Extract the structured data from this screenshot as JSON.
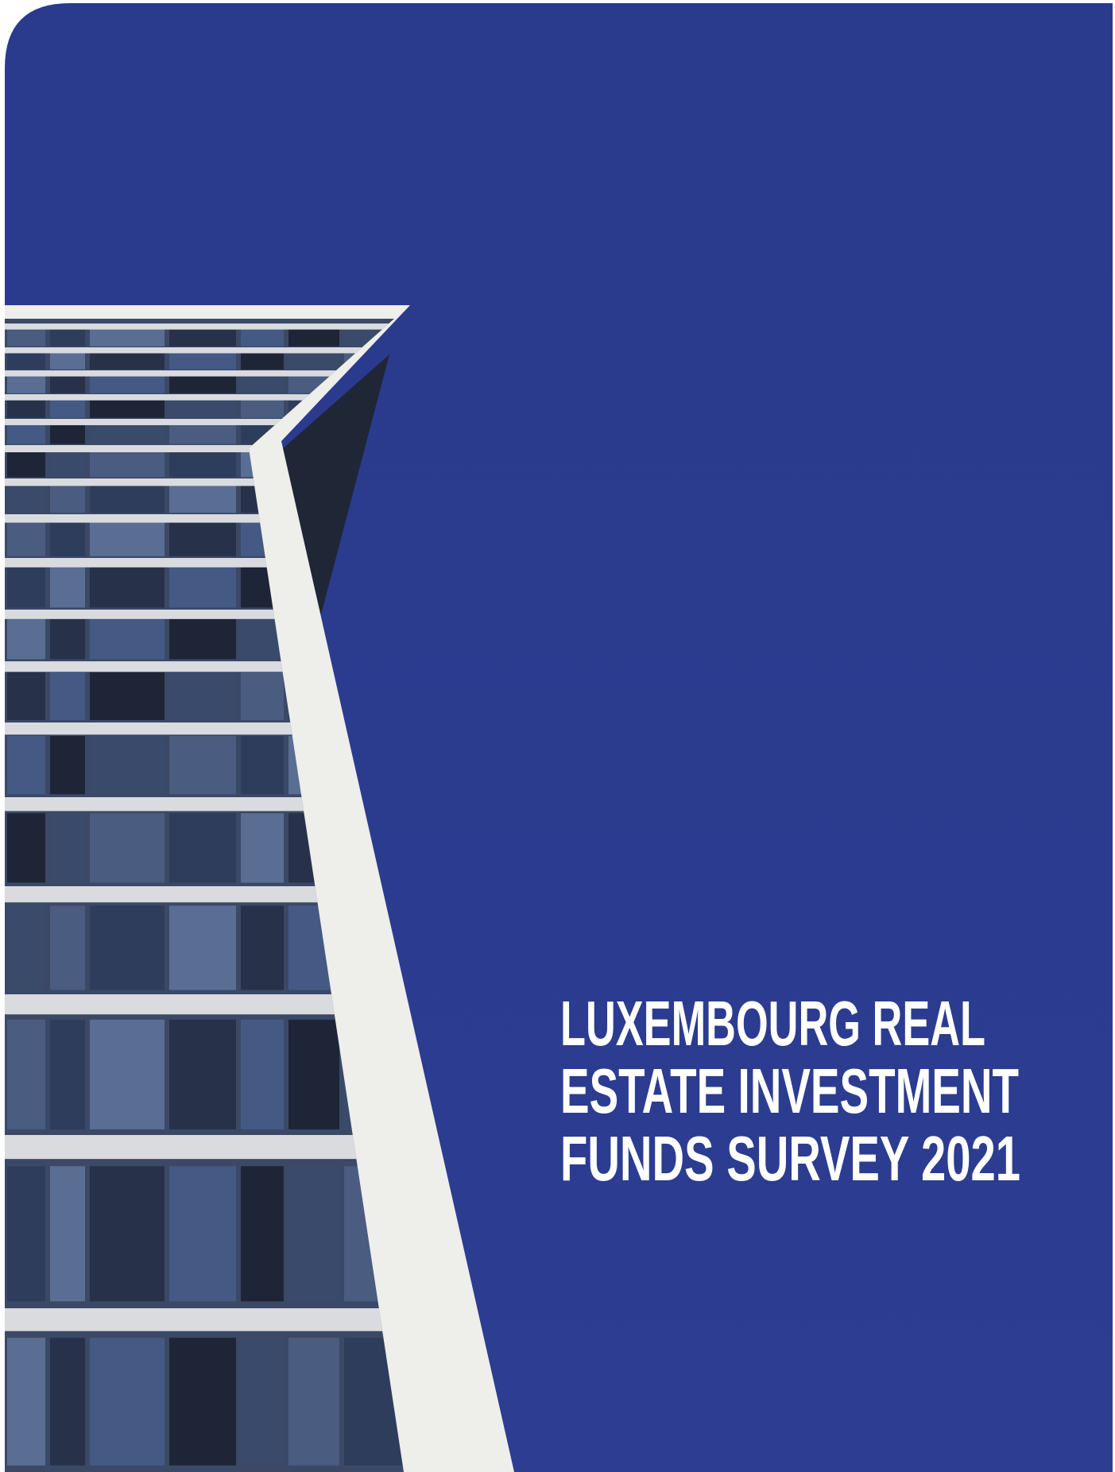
{
  "cover": {
    "title_lines": [
      "LUXEMBOURG REAL",
      "ESTATE INVESTMENT",
      "FUNDS SURVEY 2021"
    ]
  }
}
